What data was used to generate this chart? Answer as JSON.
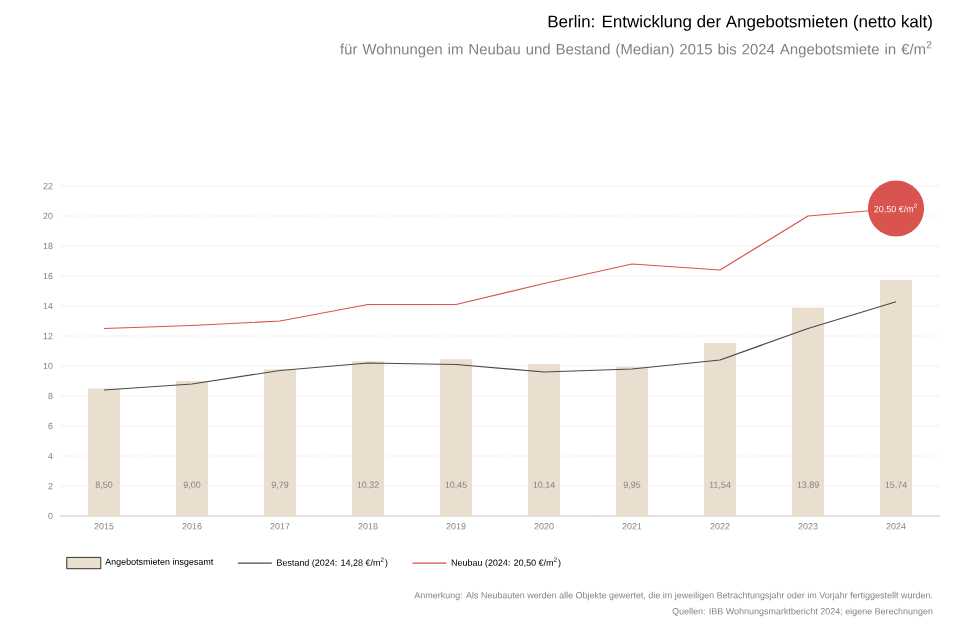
{
  "chart_data": {
    "type": "bar",
    "title": "Berlin: Entwicklung der Angebotsmieten (netto kalt)",
    "subtitle": "für Wohnungen im Neubau und Bestand (Median) 2015 bis 2024 Angebotsmiete in €/m$^{2}$",
    "categories": [
      "2015",
      "2016",
      "2017",
      "2018",
      "2019",
      "2020",
      "2021",
      "2022",
      "2023",
      "2024"
    ],
    "series": [
      {
        "name": "Angebotsmieten insgesamt",
        "color": "#eadfcf",
        "values": [
          8.5,
          9.0,
          9.79,
          10.32,
          10.45,
          10.14,
          9.95,
          11.54,
          13.89,
          15.74
        ],
        "value_labels": [
          "8,50",
          "9,00",
          "9,79",
          "10,32",
          "10,45",
          "10,14",
          "9,95",
          "11,54",
          "13,89",
          "15,74"
        ]
      },
      {
        "name": "Bestand (2024: 14,28 €/m$^{2}$)",
        "type": "line",
        "color": "#4a4a4a",
        "values": [
          8.4,
          8.8,
          9.7,
          10.2,
          10.1,
          9.6,
          9.8,
          10.4,
          12.5,
          14.28
        ]
      },
      {
        "name": "Neubau (2024: 20,50 €/m$^{2}$)",
        "type": "line",
        "color": "#d9534f",
        "values": [
          12.5,
          12.7,
          13.0,
          14.1,
          14.1,
          15.5,
          16.8,
          16.4,
          20.0,
          20.5
        ]
      }
    ],
    "ylim": [
      0,
      22
    ],
    "yticks": [
      0,
      2,
      4,
      6,
      8,
      10,
      12,
      14,
      16,
      18,
      20,
      22
    ],
    "grid": "y",
    "legend": "bottom",
    "annotations": [
      {
        "text": "20,50 €/m$^{2}$",
        "x": "2024",
        "y": 20.5
      },
      "Anmerkung: Als Neubauten werden alle Objekte gewertet, die im jeweiligen Betrachtungsjahr oder im Vorjahr fertiggestellt wurden.",
      "Quellen: IBB Wohnungsmarktbericht 2024; eigene Berechnungen"
    ]
  }
}
